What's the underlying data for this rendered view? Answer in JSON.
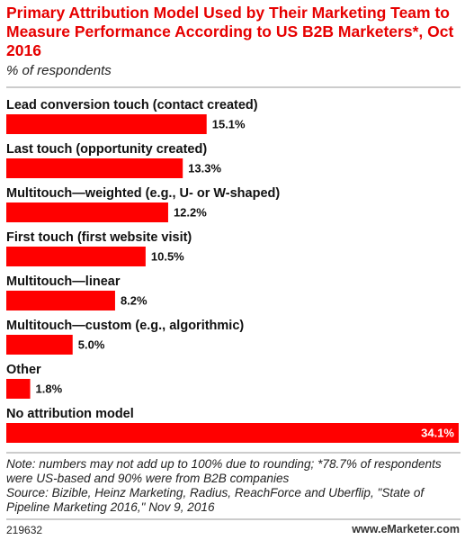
{
  "chart_data": {
    "type": "bar",
    "orientation": "horizontal",
    "title": "Primary Attribution Model Used by Their Marketing Team to Measure Performance According to US B2B Marketers*, Oct 2016",
    "subtitle": "% of respondents",
    "categories": [
      "Lead conversion touch (contact created)",
      "Last touch (opportunity created)",
      "Multitouch—weighted (e.g., U- or W-shaped)",
      "First touch (first website visit)",
      "Multitouch—linear",
      "Multitouch—custom (e.g., algorithmic)",
      "Other",
      "No attribution model"
    ],
    "values": [
      15.1,
      13.3,
      12.2,
      10.5,
      8.2,
      5.0,
      1.8,
      34.1
    ],
    "value_labels": [
      "15.1%",
      "13.3%",
      "12.2%",
      "10.5%",
      "8.2%",
      "5.0%",
      "1.8%",
      "34.1%"
    ],
    "color": "#ff0000",
    "note": "Note: numbers may not add up to 100% due to rounding; *78.7% of respondents were US-based and 90% were from B2B companies",
    "source": "Source: Bizible, Heinz Marketing, Radius, ReachForce and Uberflip, \"State of Pipeline Marketing 2016,\" Nov 9, 2016",
    "id": "219632",
    "site": "www.eMarketer.com"
  }
}
